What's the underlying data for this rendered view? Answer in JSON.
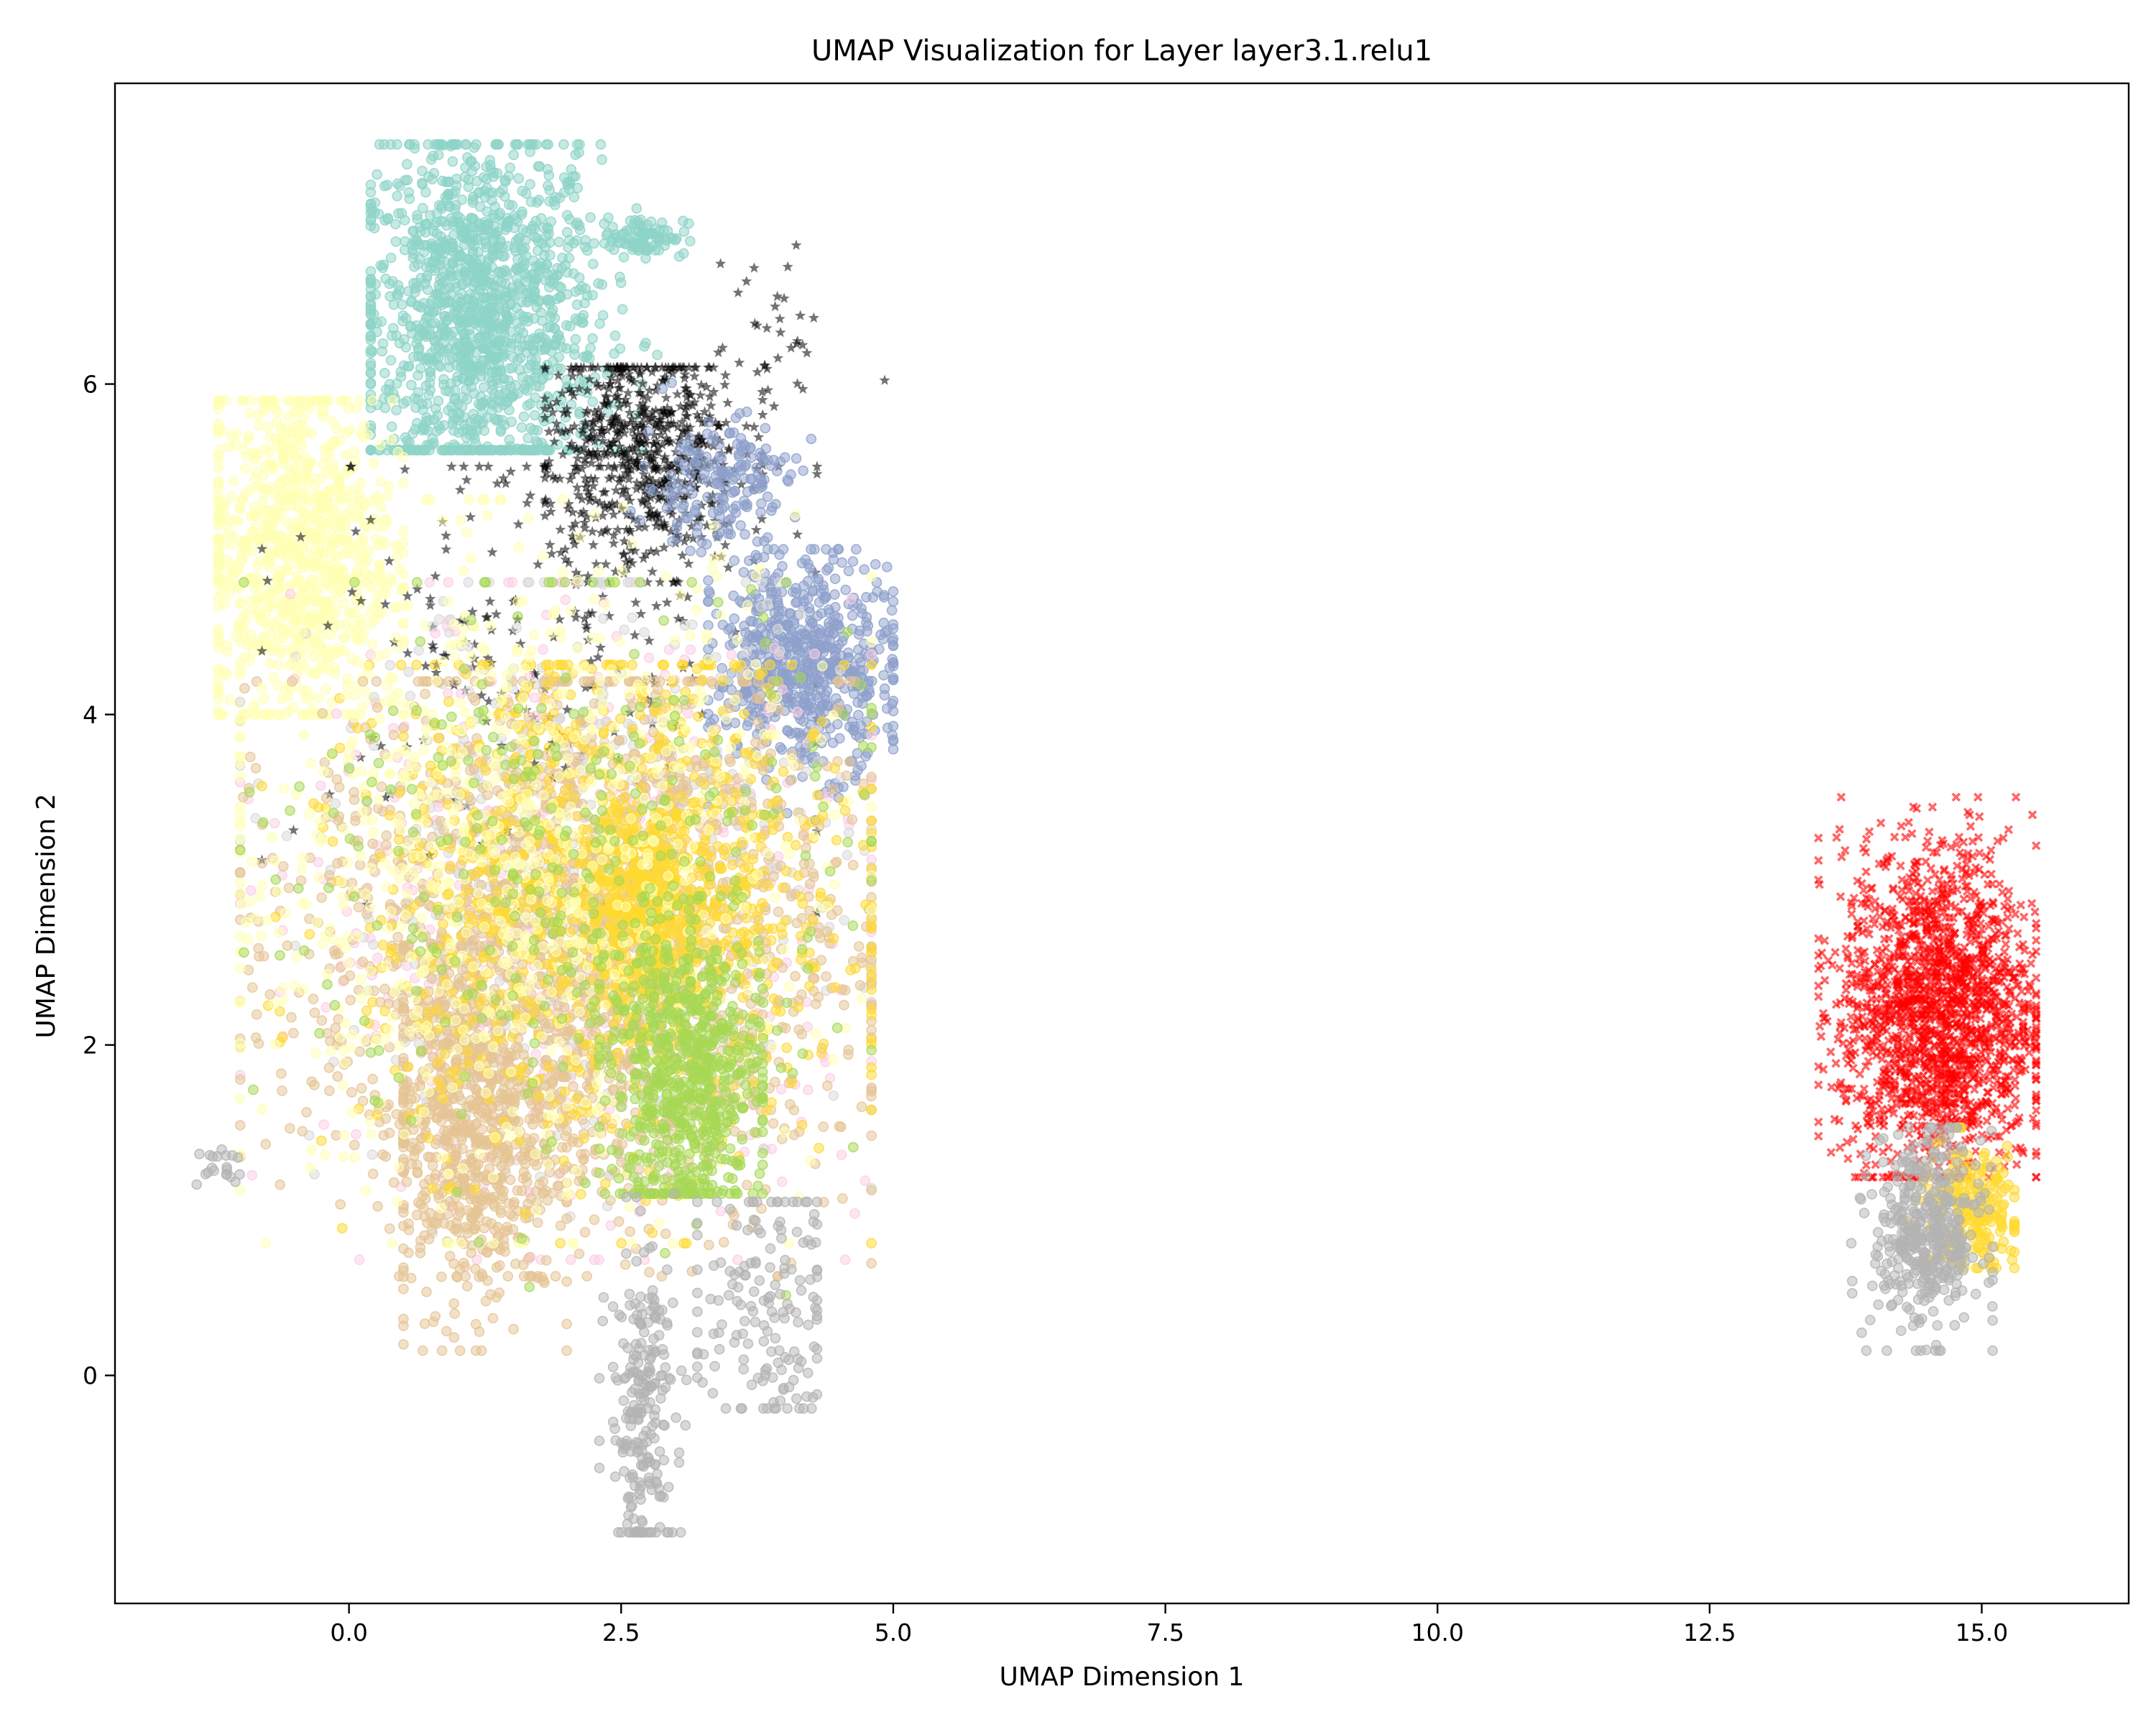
{
  "chart_data": {
    "type": "scatter",
    "title": "UMAP Visualization for Layer layer3.1.relu1",
    "xlabel": "UMAP Dimension 1",
    "ylabel": "UMAP Dimension 2",
    "xlim": [
      -2.15,
      16.35
    ],
    "ylim": [
      -1.38,
      7.82
    ],
    "xticks": [
      0.0,
      2.5,
      5.0,
      7.5,
      10.0,
      12.5,
      15.0
    ],
    "xtick_labels": [
      "0.0",
      "2.5",
      "5.0",
      "7.5",
      "10.0",
      "12.5",
      "15.0"
    ],
    "yticks": [
      0,
      2,
      4,
      6
    ],
    "ytick_labels": [
      "0",
      "2",
      "4",
      "6"
    ],
    "grid": false,
    "legend": "none",
    "clusters": [
      {
        "color": "#8dd3c7",
        "marker": "circle",
        "count": 1400,
        "center": [
          1.2,
          6.4
        ],
        "spread": [
          0.55,
          0.55
        ],
        "range_x": [
          0.2,
          2.9
        ],
        "range_y": [
          5.6,
          7.45
        ]
      },
      {
        "color": "#8dd3c7",
        "marker": "circle",
        "count": 90,
        "center": [
          2.7,
          6.9
        ],
        "spread": [
          0.2,
          0.06
        ]
      },
      {
        "color": "#ffffb3",
        "marker": "circle",
        "count": 900,
        "center": [
          -0.5,
          5.0
        ],
        "spread": [
          0.45,
          0.55
        ],
        "range_x": [
          -1.2,
          0.5
        ],
        "range_y": [
          4.0,
          5.9
        ]
      },
      {
        "color": "#000000",
        "marker": "star",
        "count": 650,
        "center": [
          2.7,
          5.6
        ],
        "spread": [
          0.45,
          0.35
        ],
        "range_x": [
          1.8,
          3.8
        ],
        "range_y": [
          4.8,
          6.1
        ]
      },
      {
        "color": "#000000",
        "marker": "star",
        "count": 220,
        "center": [
          1.8,
          4.5
        ],
        "spread": [
          1.1,
          0.7
        ],
        "range_x": [
          -0.8,
          4.3
        ],
        "range_y": [
          2.8,
          5.5
        ]
      },
      {
        "color": "#000000",
        "marker": "star",
        "count": 36,
        "center": [
          3.85,
          6.25
        ],
        "spread": [
          0.25,
          0.25
        ]
      },
      {
        "color": "#8da0cb",
        "marker": "circle",
        "count": 650,
        "center": [
          4.2,
          4.3
        ],
        "spread": [
          0.42,
          0.32
        ],
        "range_x": [
          3.3,
          5.0
        ],
        "range_y": [
          3.3,
          5.0
        ]
      },
      {
        "color": "#8da0cb",
        "marker": "circle",
        "count": 180,
        "center": [
          3.4,
          5.4
        ],
        "spread": [
          0.35,
          0.2
        ]
      },
      {
        "color": "#fccde5",
        "marker": "circle",
        "count": 550,
        "center": [
          2.2,
          2.8
        ],
        "spread": [
          1.3,
          0.9
        ],
        "range_x": [
          -1.0,
          4.8
        ],
        "range_y": [
          0.7,
          4.8
        ]
      },
      {
        "color": "#d9d9d9",
        "marker": "circle",
        "count": 500,
        "center": [
          2.2,
          3.0
        ],
        "spread": [
          1.2,
          0.9
        ],
        "range_x": [
          -1.0,
          4.8
        ],
        "range_y": [
          0.7,
          4.8
        ]
      },
      {
        "color": "#e5c494",
        "marker": "circle",
        "count": 1800,
        "center": [
          2.1,
          2.6
        ],
        "spread": [
          1.25,
          0.85
        ],
        "range_x": [
          -1.0,
          4.8
        ],
        "range_y": [
          0.6,
          4.2
        ]
      },
      {
        "color": "#e5c494",
        "marker": "circle",
        "count": 700,
        "center": [
          1.1,
          1.5
        ],
        "spread": [
          0.4,
          0.55
        ],
        "range_x": [
          0.5,
          2.0
        ],
        "range_y": [
          0.15,
          2.6
        ]
      },
      {
        "color": "#ffd92f",
        "marker": "circle",
        "count": 1100,
        "center": [
          2.4,
          2.9
        ],
        "spread": [
          1.1,
          0.75
        ],
        "range_x": [
          -0.8,
          4.8
        ],
        "range_y": [
          0.8,
          4.3
        ]
      },
      {
        "color": "#ffd92f",
        "marker": "circle",
        "count": 350,
        "center": [
          2.8,
          2.85
        ],
        "spread": [
          0.3,
          0.25
        ]
      },
      {
        "color": "#ffffb3",
        "marker": "circle",
        "count": 900,
        "center": [
          1.5,
          3.1
        ],
        "spread": [
          1.4,
          1.0
        ],
        "range_x": [
          -1.0,
          4.8
        ],
        "range_y": [
          0.8,
          5.3
        ]
      },
      {
        "color": "#a6d854",
        "marker": "circle",
        "count": 700,
        "center": [
          3.1,
          1.8
        ],
        "spread": [
          0.35,
          0.45
        ],
        "range_x": [
          2.3,
          3.8
        ],
        "range_y": [
          1.1,
          2.9
        ]
      },
      {
        "color": "#a6d854",
        "marker": "circle",
        "count": 350,
        "center": [
          2.1,
          3.0
        ],
        "spread": [
          1.3,
          0.9
        ],
        "range_x": [
          -1.0,
          4.8
        ],
        "range_y": [
          0.0,
          4.8
        ]
      },
      {
        "color": "#b3b3b3",
        "marker": "circle",
        "count": 230,
        "center": [
          2.7,
          -0.2
        ],
        "spread": [
          0.15,
          0.5
        ],
        "range_x": [
          2.3,
          3.1
        ],
        "range_y": [
          -0.95,
          1.1
        ]
      },
      {
        "color": "#b3b3b3",
        "marker": "circle",
        "count": 160,
        "center": [
          3.8,
          0.4
        ],
        "spread": [
          0.35,
          0.4
        ],
        "range_x": [
          3.2,
          4.3
        ],
        "range_y": [
          -0.2,
          1.05
        ]
      },
      {
        "color": "#b3b3b3",
        "marker": "circle",
        "count": 20,
        "center": [
          -1.2,
          1.25
        ],
        "spread": [
          0.1,
          0.08
        ]
      },
      {
        "color": "#ff0000",
        "marker": "x",
        "count": 1800,
        "center": [
          14.6,
          2.2
        ],
        "spread": [
          0.45,
          0.5
        ],
        "range_x": [
          13.5,
          15.5
        ],
        "range_y": [
          1.2,
          3.5
        ]
      },
      {
        "color": "#ffd92f",
        "marker": "circle",
        "count": 220,
        "center": [
          14.9,
          1.0
        ],
        "spread": [
          0.25,
          0.2
        ],
        "range_x": [
          14.3,
          15.3
        ],
        "range_y": [
          0.65,
          1.5
        ]
      },
      {
        "color": "#b3b3b3",
        "marker": "circle",
        "count": 420,
        "center": [
          14.5,
          0.85
        ],
        "spread": [
          0.25,
          0.3
        ],
        "range_x": [
          13.6,
          15.1
        ],
        "range_y": [
          0.15,
          1.5
        ]
      }
    ]
  }
}
